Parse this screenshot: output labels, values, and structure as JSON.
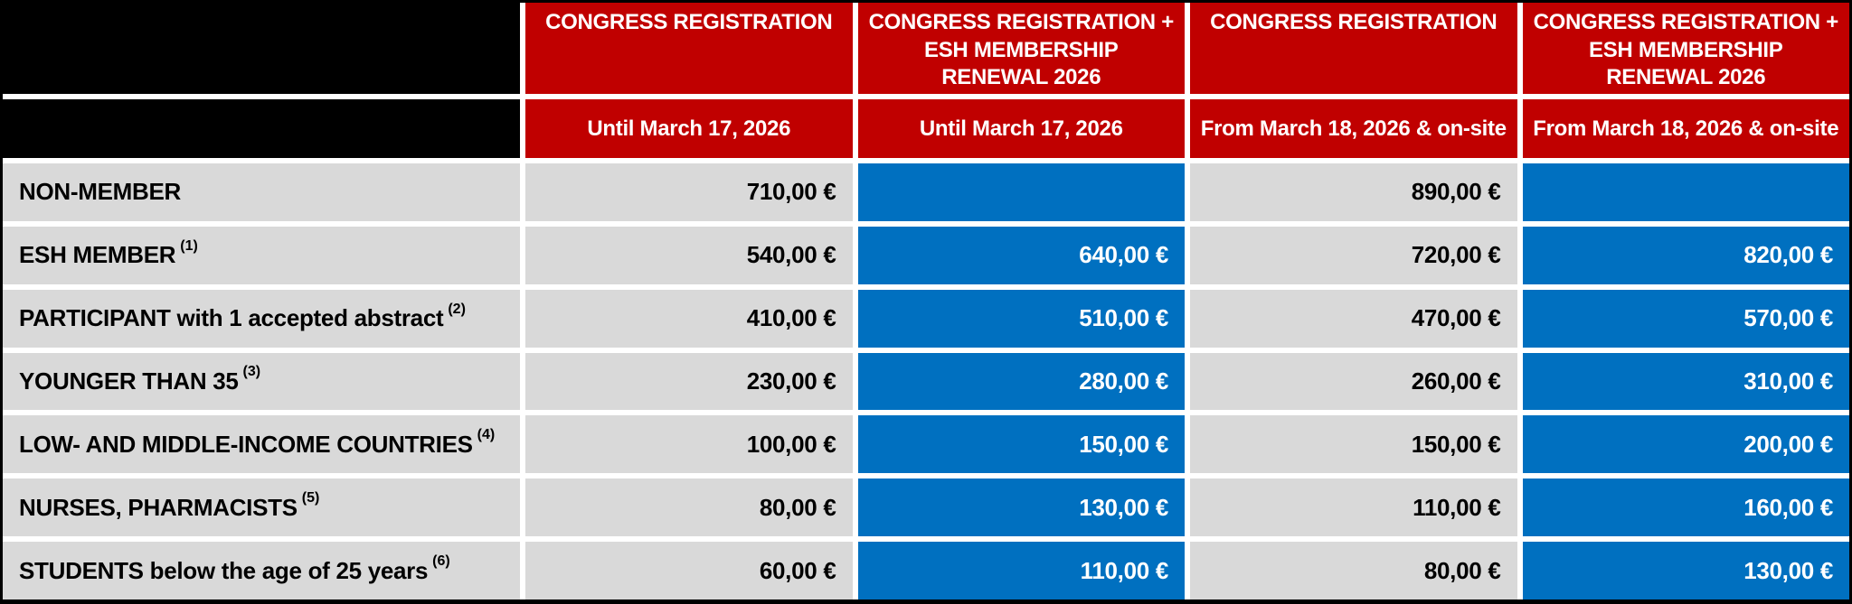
{
  "colors": {
    "header_red": "#C00000",
    "price_blue": "#0070C0",
    "row_gray": "#D9D9D9",
    "frame_black": "#000000"
  },
  "chart_data": {
    "type": "table",
    "currency": "EUR",
    "column_headers": [
      {
        "title": "",
        "period": ""
      },
      {
        "title": "CONGRESS REGISTRATION",
        "period": "Until March 17, 2026"
      },
      {
        "title": "CONGRESS REGISTRATION +\nESH MEMBERSHIP\nRENEWAL 2026",
        "period": "Until March 17, 2026"
      },
      {
        "title": "CONGRESS REGISTRATION",
        "period": "From March 18, 2026 & on-site"
      },
      {
        "title": "CONGRESS REGISTRATION +\nESH MEMBERSHIP\nRENEWAL 2026",
        "period": "From March 18, 2026 & on-site"
      }
    ],
    "rows": [
      {
        "label": "NON-MEMBER",
        "footnote": "",
        "prices": [
          "710,00 €",
          "",
          "890,00 €",
          ""
        ]
      },
      {
        "label": "ESH MEMBER",
        "footnote": "(1)",
        "prices": [
          "540,00 €",
          "640,00 €",
          "720,00 €",
          "820,00 €"
        ]
      },
      {
        "label": "PARTICIPANT with 1 accepted abstract",
        "footnote": "(2)",
        "prices": [
          "410,00 €",
          "510,00 €",
          "470,00 €",
          "570,00 €"
        ]
      },
      {
        "label": "YOUNGER THAN 35",
        "footnote": "(3)",
        "prices": [
          "230,00 €",
          "280,00 €",
          "260,00 €",
          "310,00 €"
        ]
      },
      {
        "label": "LOW- AND MIDDLE-INCOME COUNTRIES",
        "footnote": "(4)",
        "prices": [
          "100,00 €",
          "150,00 €",
          "150,00 €",
          "200,00 €"
        ]
      },
      {
        "label": "NURSES, PHARMACISTS",
        "footnote": "(5)",
        "prices": [
          "80,00 €",
          "130,00 €",
          "110,00 €",
          "160,00 €"
        ]
      },
      {
        "label": "STUDENTS below the age of 25 years",
        "footnote": "(6)",
        "prices": [
          "60,00 €",
          "110,00 €",
          "80,00 €",
          "130,00 €"
        ]
      }
    ]
  }
}
